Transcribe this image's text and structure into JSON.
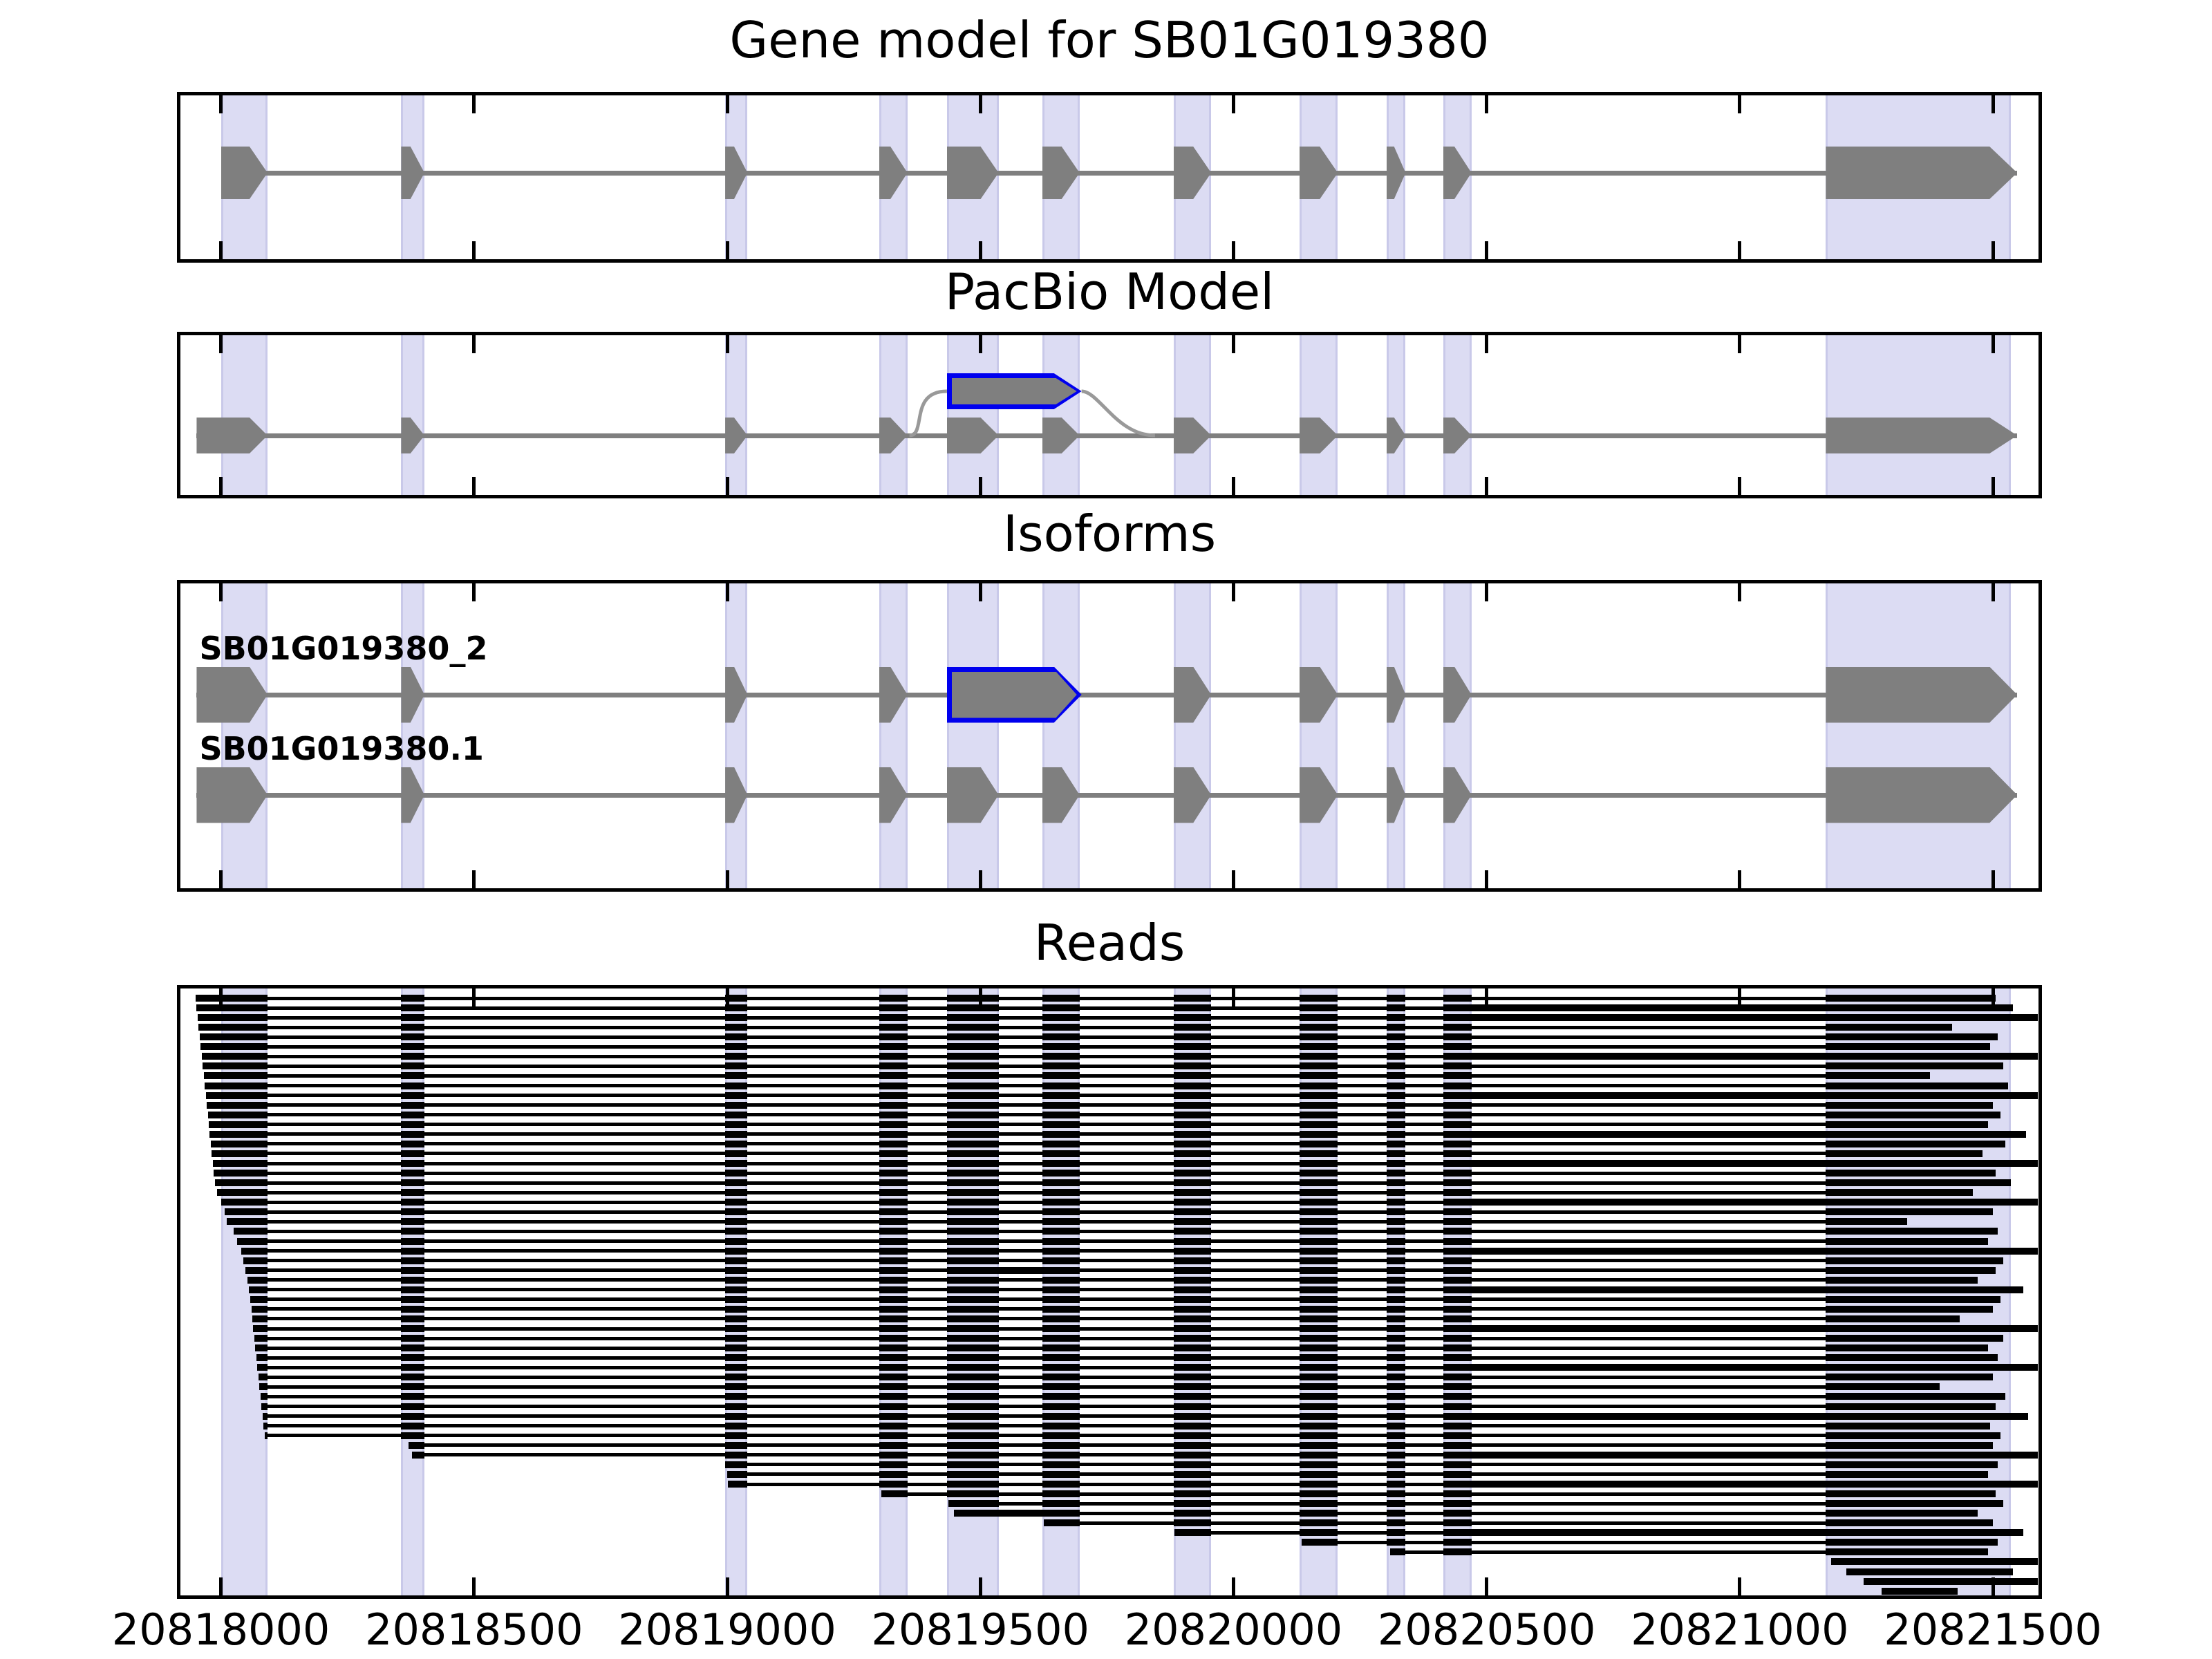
{
  "figure": {
    "background": "#ffffff",
    "description": "Gene model browser figure with four stacked genomic tracks sharing one x-axis"
  },
  "colors": {
    "exon_fill": "#7f7f7f",
    "intron_line": "#7f7f7f",
    "novel_exon_outline": "#0000ee",
    "splice_curve": "#999999",
    "read_fill": "#000000",
    "band_fill": "#dcdcf3",
    "band_edge": "#c9c9e9",
    "panel_border": "#000000",
    "text": "#000000"
  },
  "chart_data": {
    "type": "genome-tracks",
    "gene_id": "SB01G019380",
    "x_range": [
      20817920,
      20821590
    ],
    "x_ticks": [
      20818000,
      20818500,
      20819000,
      20819500,
      20820000,
      20820500,
      20821000,
      20821500
    ],
    "x_tick_labels": [
      "20818000",
      "20818500",
      "20819000",
      "20819500",
      "20820000",
      "20820500",
      "20821000",
      "20821500"
    ],
    "exon_highlight_bands": [
      [
        20818000,
        20818092
      ],
      [
        20818356,
        20818402
      ],
      [
        20818996,
        20819040
      ],
      [
        20819300,
        20819356
      ],
      [
        20819434,
        20819536
      ],
      [
        20819622,
        20819696
      ],
      [
        20819882,
        20819956
      ],
      [
        20820130,
        20820206
      ],
      [
        20820302,
        20820340
      ],
      [
        20820414,
        20820470
      ],
      [
        20821170,
        20821535
      ]
    ],
    "panels": [
      {
        "title": "Gene model for SB01G019380",
        "kind": "gene-model",
        "model": {
          "exons": [
            [
              20818000,
              20818092
            ],
            [
              20818356,
              20818402
            ],
            [
              20818996,
              20819040
            ],
            [
              20819300,
              20819356
            ],
            [
              20819434,
              20819536
            ],
            [
              20819622,
              20819696
            ],
            [
              20819882,
              20819956
            ],
            [
              20820130,
              20820206
            ],
            [
              20820302,
              20820340
            ],
            [
              20820414,
              20820470
            ],
            [
              20821170,
              20821548
            ]
          ],
          "strand": "+"
        }
      },
      {
        "title": "PacBio Model",
        "kind": "pacbio-model",
        "model": {
          "exons": [
            [
              20817952,
              20818092
            ],
            [
              20818356,
              20818402
            ],
            [
              20818996,
              20819040
            ],
            [
              20819300,
              20819356
            ],
            [
              20819434,
              20819536
            ],
            [
              20819622,
              20819696
            ],
            [
              20819882,
              20819956
            ],
            [
              20820130,
              20820206
            ],
            [
              20820302,
              20820340
            ],
            [
              20820414,
              20820470
            ],
            [
              20821170,
              20821548
            ]
          ],
          "strand": "+"
        },
        "novel_exon": [
          20819434,
          20819700
        ],
        "splice_curves": [
          [
            20819360,
            20819434
          ],
          [
            20819700,
            20819845
          ]
        ]
      },
      {
        "title": "Isoforms",
        "kind": "isoforms",
        "isoforms": [
          {
            "name": "SB01G019380_2",
            "highlight_exon_index": 4,
            "exons": [
              [
                20817952,
                20818092
              ],
              [
                20818356,
                20818402
              ],
              [
                20818996,
                20819040
              ],
              [
                20819300,
                20819356
              ],
              [
                20819434,
                20819700
              ],
              [
                20819882,
                20819956
              ],
              [
                20820130,
                20820206
              ],
              [
                20820302,
                20820340
              ],
              [
                20820414,
                20820470
              ],
              [
                20821170,
                20821548
              ]
            ]
          },
          {
            "name": "SB01G019380.1",
            "exons": [
              [
                20817952,
                20818092
              ],
              [
                20818356,
                20818402
              ],
              [
                20818996,
                20819040
              ],
              [
                20819300,
                20819356
              ],
              [
                20819434,
                20819536
              ],
              [
                20819622,
                20819696
              ],
              [
                20819882,
                20819956
              ],
              [
                20820130,
                20820206
              ],
              [
                20820302,
                20820340
              ],
              [
                20820414,
                20820470
              ],
              [
                20821170,
                20821548
              ]
            ]
          }
        ]
      },
      {
        "title": "Reads",
        "kind": "reads",
        "reads": [
          [
            20817950,
            20821505,
            []
          ],
          [
            20817952,
            20821540,
            [
              9
            ]
          ],
          [
            20817954,
            20821588,
            [
              9
            ]
          ],
          [
            20817956,
            20821420,
            []
          ],
          [
            20817958,
            20821510,
            []
          ],
          [
            20817960,
            20821495,
            []
          ],
          [
            20817962,
            20821588,
            [
              9
            ]
          ],
          [
            20817964,
            20821520,
            []
          ],
          [
            20817966,
            20821375,
            []
          ],
          [
            20817968,
            20821530,
            []
          ],
          [
            20817970,
            20821588,
            [
              9
            ]
          ],
          [
            20817972,
            20821500,
            []
          ],
          [
            20817974,
            20821515,
            []
          ],
          [
            20817976,
            20821490,
            []
          ],
          [
            20817978,
            20821565,
            [
              9
            ]
          ],
          [
            20817980,
            20821525,
            []
          ],
          [
            20817982,
            20821480,
            []
          ],
          [
            20817984,
            20821588,
            [
              9
            ]
          ],
          [
            20817986,
            20821505,
            []
          ],
          [
            20817988,
            20821535,
            []
          ],
          [
            20817992,
            20821460,
            []
          ],
          [
            20818000,
            20821588,
            [
              9
            ]
          ],
          [
            20818008,
            20821500,
            []
          ],
          [
            20818012,
            20821330,
            []
          ],
          [
            20818025,
            20821510,
            []
          ],
          [
            20818032,
            20821490,
            []
          ],
          [
            20818040,
            20821588,
            [
              9
            ]
          ],
          [
            20818044,
            20821520,
            []
          ],
          [
            20818048,
            20821505,
            [
              4
            ]
          ],
          [
            20818052,
            20821470,
            []
          ],
          [
            20818055,
            20821560,
            [
              9
            ]
          ],
          [
            20818058,
            20821515,
            []
          ],
          [
            20818060,
            20821500,
            []
          ],
          [
            20818062,
            20821435,
            []
          ],
          [
            20818064,
            20821588,
            [
              9
            ]
          ],
          [
            20818066,
            20821520,
            []
          ],
          [
            20818068,
            20821490,
            []
          ],
          [
            20818070,
            20821510,
            []
          ],
          [
            20818072,
            20821588,
            [
              9
            ]
          ],
          [
            20818074,
            20821500,
            []
          ],
          [
            20818076,
            20821395,
            []
          ],
          [
            20818078,
            20821525,
            []
          ],
          [
            20818080,
            20821505,
            []
          ],
          [
            20818082,
            20821570,
            [
              9
            ]
          ],
          [
            20818084,
            20821495,
            []
          ],
          [
            20818086,
            20821515,
            []
          ],
          [
            20818370,
            20821500,
            []
          ],
          [
            20818378,
            20821588,
            [
              9
            ]
          ],
          [
            20818996,
            20821510,
            []
          ],
          [
            20819000,
            20821490,
            []
          ],
          [
            20819002,
            20821588,
            [
              9
            ]
          ],
          [
            20819305,
            20821505,
            []
          ],
          [
            20819437,
            20821520,
            []
          ],
          [
            20819448,
            20821470,
            [
              4
            ]
          ],
          [
            20819625,
            20821500,
            []
          ],
          [
            20819883,
            20821560,
            [
              9
            ]
          ],
          [
            20820135,
            20821510,
            []
          ],
          [
            20820310,
            20821490,
            []
          ],
          [
            20821180,
            20821588,
            []
          ],
          [
            20821210,
            20821540,
            []
          ],
          [
            20821245,
            20821588,
            []
          ],
          [
            20821280,
            20821430,
            []
          ]
        ]
      }
    ]
  }
}
